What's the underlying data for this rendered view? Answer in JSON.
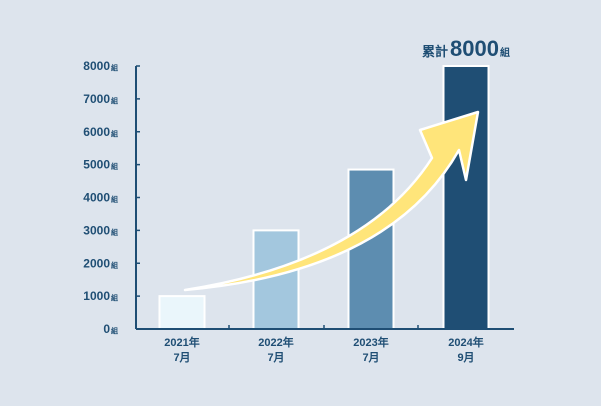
{
  "chart_data": {
    "type": "bar",
    "categories": [
      {
        "year": "2021年",
        "month": "7月"
      },
      {
        "year": "2022年",
        "month": "7月"
      },
      {
        "year": "2023年",
        "month": "7月"
      },
      {
        "year": "2024年",
        "month": "9月"
      }
    ],
    "values": [
      1000,
      3000,
      4850,
      8000
    ],
    "bar_colors": [
      "#eaf6fb",
      "#a3c7de",
      "#5d8db0",
      "#1f4e74"
    ],
    "y_ticks": [
      0,
      1000,
      2000,
      3000,
      4000,
      5000,
      6000,
      7000,
      8000
    ],
    "y_unit": "組",
    "ylim": [
      0,
      8000
    ],
    "annotation": {
      "prefix": "累計",
      "value": "8000",
      "unit": "組"
    },
    "trend_arrow_color": "#ffe57a",
    "axis_color": "#1f4e74",
    "background": "#dde4ed"
  }
}
